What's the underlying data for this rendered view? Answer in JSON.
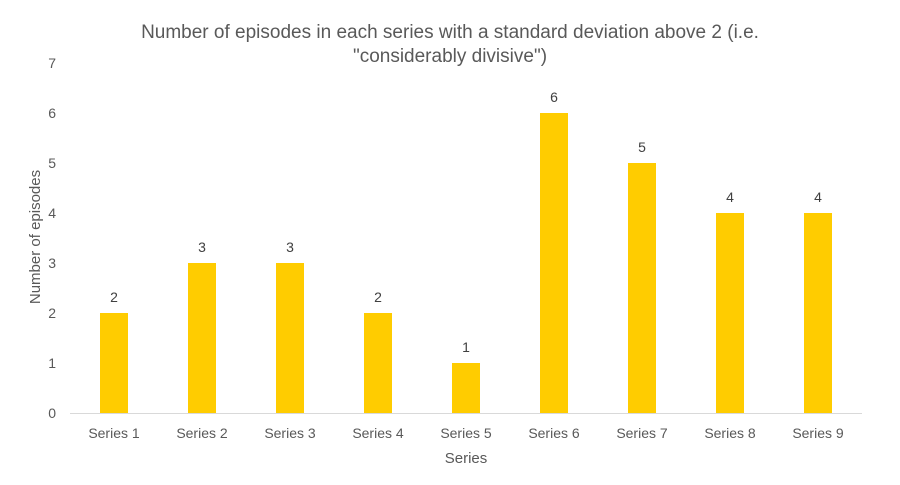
{
  "chart_data": {
    "type": "bar",
    "title_lines": [
      "Number of episodes in each series with a standard deviation above 2 (i.e.",
      "\"considerably divisive\")"
    ],
    "categories": [
      "Series 1",
      "Series 2",
      "Series 3",
      "Series 4",
      "Series 5",
      "Series 6",
      "Series 7",
      "Series 8",
      "Series 9"
    ],
    "values": [
      2,
      3,
      3,
      2,
      1,
      6,
      5,
      4,
      4
    ],
    "xlabel": "Series",
    "ylabel": "Number of episodes",
    "ylim": [
      0,
      7
    ],
    "yticks": [
      "0",
      "1",
      "2",
      "3",
      "4",
      "5",
      "6",
      "7"
    ],
    "bar_color": "#FFCC00",
    "axis_color": "#D9D9D9",
    "grid": false,
    "legend": "none",
    "data_labels": true
  }
}
